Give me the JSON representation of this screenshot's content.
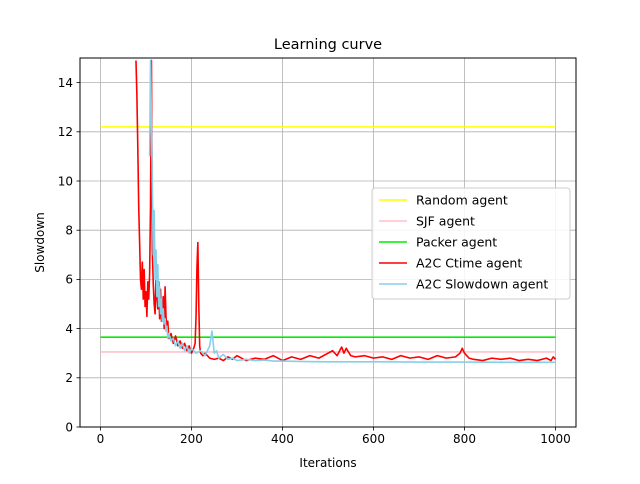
{
  "chart_data": {
    "type": "line",
    "title": "Learning curve",
    "xlabel": "Iterations",
    "ylabel": "Slowdown",
    "xlim": [
      -45,
      1045
    ],
    "ylim": [
      0,
      15
    ],
    "xticks": [
      0,
      200,
      400,
      600,
      800,
      1000
    ],
    "yticks": [
      0,
      2,
      4,
      6,
      8,
      10,
      12,
      14
    ],
    "grid": true,
    "legend_position": "center-right",
    "series": [
      {
        "name": "Random agent",
        "color": "#ffff00",
        "x": [
          0,
          1000
        ],
        "y": [
          12.2,
          12.2
        ]
      },
      {
        "name": "SJF agent",
        "color": "#ffc0cb",
        "x": [
          0,
          1000
        ],
        "y": [
          3.05,
          3.05
        ]
      },
      {
        "name": "Packer agent",
        "color": "#00ee00",
        "x": [
          0,
          1000
        ],
        "y": [
          3.65,
          3.65
        ]
      },
      {
        "name": "A2C Ctime agent",
        "color": "#ff0000",
        "x": [
          78,
          80,
          82,
          84,
          86,
          88,
          90,
          92,
          94,
          96,
          98,
          100,
          102,
          104,
          106,
          108,
          110,
          112,
          114,
          116,
          118,
          120,
          122,
          124,
          126,
          128,
          130,
          132,
          134,
          136,
          138,
          140,
          142,
          144,
          146,
          148,
          150,
          155,
          160,
          165,
          170,
          175,
          180,
          185,
          190,
          195,
          200,
          205,
          208,
          210,
          212,
          214,
          216,
          218,
          220,
          225,
          230,
          240,
          250,
          260,
          270,
          280,
          290,
          300,
          320,
          340,
          360,
          380,
          400,
          420,
          440,
          460,
          480,
          500,
          510,
          520,
          530,
          535,
          540,
          550,
          560,
          580,
          600,
          620,
          640,
          660,
          680,
          700,
          720,
          740,
          760,
          780,
          790,
          795,
          800,
          805,
          810,
          820,
          840,
          860,
          880,
          900,
          920,
          940,
          960,
          980,
          990,
          995,
          1000
        ],
        "y": [
          14.9,
          13.5,
          11.4,
          9.0,
          7.5,
          6.0,
          5.6,
          6.7,
          5.2,
          6.4,
          4.9,
          5.5,
          4.5,
          5.9,
          5.2,
          6.2,
          9.0,
          14.9,
          7.2,
          5.8,
          5.0,
          4.6,
          6.1,
          5.3,
          4.8,
          5.9,
          4.4,
          5.6,
          4.3,
          4.8,
          5.3,
          4.0,
          5.7,
          4.5,
          3.9,
          4.3,
          3.6,
          3.8,
          3.4,
          3.7,
          3.3,
          3.5,
          3.2,
          3.4,
          3.1,
          3.3,
          3.0,
          3.2,
          3.4,
          4.5,
          6.5,
          7.5,
          5.0,
          3.3,
          3.0,
          2.9,
          3.0,
          2.8,
          2.75,
          2.8,
          2.7,
          2.85,
          2.75,
          2.9,
          2.7,
          2.8,
          2.75,
          2.9,
          2.7,
          2.85,
          2.75,
          2.9,
          2.8,
          3.0,
          3.1,
          2.9,
          3.25,
          3.0,
          3.2,
          2.9,
          2.85,
          2.9,
          2.8,
          2.85,
          2.75,
          2.9,
          2.8,
          2.85,
          2.75,
          2.9,
          2.8,
          2.85,
          3.0,
          3.2,
          3.0,
          2.9,
          2.8,
          2.75,
          2.7,
          2.8,
          2.75,
          2.8,
          2.7,
          2.75,
          2.7,
          2.8,
          2.7,
          2.85,
          2.75
        ]
      },
      {
        "name": "A2C Slowdown agent",
        "color": "#87ceeb",
        "x": [
          108,
          110,
          112,
          114,
          116,
          118,
          120,
          122,
          124,
          126,
          128,
          130,
          132,
          134,
          136,
          138,
          140,
          142,
          144,
          146,
          148,
          150,
          155,
          160,
          165,
          170,
          175,
          180,
          185,
          190,
          195,
          200,
          210,
          220,
          230,
          240,
          245,
          250,
          255,
          260,
          270,
          280,
          290,
          300,
          320,
          340,
          360,
          380,
          400,
          450,
          500,
          600,
          700,
          800,
          900,
          1000
        ],
        "y": [
          11.0,
          14.9,
          12.5,
          9.8,
          7.0,
          8.8,
          6.0,
          7.2,
          5.3,
          6.6,
          4.9,
          5.7,
          4.6,
          5.2,
          4.3,
          4.8,
          4.2,
          4.4,
          3.9,
          4.1,
          3.6,
          3.8,
          3.5,
          3.6,
          3.3,
          3.5,
          3.2,
          3.4,
          3.1,
          3.3,
          3.0,
          3.2,
          3.0,
          3.1,
          2.9,
          3.3,
          3.9,
          3.0,
          3.1,
          2.8,
          2.95,
          2.75,
          2.8,
          2.7,
          2.75,
          2.7,
          2.72,
          2.68,
          2.68,
          2.66,
          2.65,
          2.65,
          2.64,
          2.64,
          2.63,
          2.63
        ]
      }
    ]
  }
}
